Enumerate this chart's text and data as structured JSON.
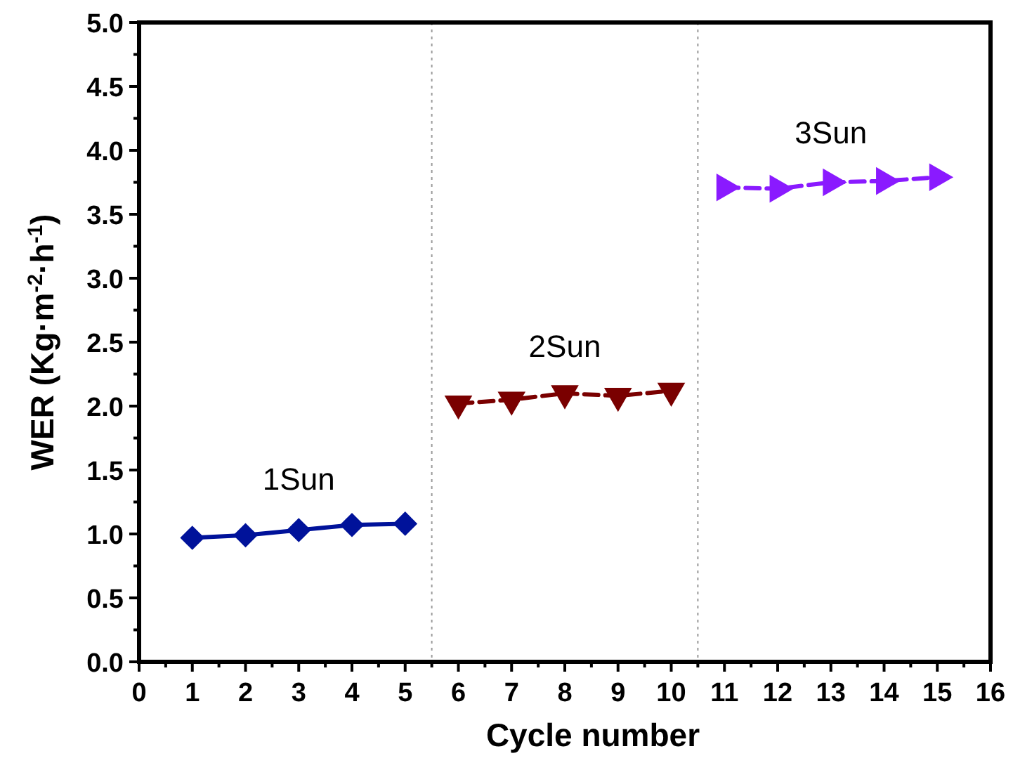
{
  "chart_data": {
    "type": "line",
    "xlabel": "Cycle number",
    "ylabel": "WER (Kg·m$^{-2}$·h$^{-1}$)",
    "xlim": [
      0,
      16
    ],
    "xticks": [
      0,
      1,
      2,
      3,
      4,
      5,
      6,
      7,
      8,
      9,
      10,
      11,
      12,
      13,
      14,
      15,
      16
    ],
    "ylim": [
      0,
      5
    ],
    "yticks": [
      {
        "value": 0,
        "label": "0.0"
      },
      {
        "value": 0.5,
        "label": "0.5"
      },
      {
        "value": 1,
        "label": "1.0"
      },
      {
        "value": 1.5,
        "label": "1.5"
      },
      {
        "value": 2,
        "label": "2.0"
      },
      {
        "value": 2.5,
        "label": "2.5"
      },
      {
        "value": 3,
        "label": "3.0"
      },
      {
        "value": 3.5,
        "label": "3.5"
      },
      {
        "value": 4,
        "label": "4.0"
      },
      {
        "value": 4.5,
        "label": "4.5"
      },
      {
        "value": 5,
        "label": "5.0"
      }
    ],
    "series": [
      {
        "name": "1Sun",
        "color": "#00129a",
        "x": [
          1,
          2,
          3,
          4,
          5
        ],
        "values": [
          0.97,
          0.99,
          1.03,
          1.07,
          1.08
        ],
        "marker": "diamond",
        "line_style": "solid"
      },
      {
        "name": "2Sun",
        "color": "#7a0000",
        "x": [
          6,
          7,
          8,
          9,
          10
        ],
        "values": [
          2.02,
          2.05,
          2.1,
          2.08,
          2.12
        ],
        "marker": "triangle",
        "line_style": "dashed"
      },
      {
        "name": "3Sun",
        "color": "#8a1aff",
        "x": [
          11,
          12,
          13,
          14,
          15
        ],
        "values": [
          3.71,
          3.7,
          3.75,
          3.76,
          3.79
        ],
        "marker": "triangle",
        "line_style": "dashed"
      }
    ],
    "ref_lines": [
      {
        "axis": "x",
        "value": 5.5,
        "color": "#999999",
        "line_style": "dotted"
      },
      {
        "axis": "x",
        "value": 10.5,
        "color": "#999999",
        "line_style": "dotted"
      }
    ]
  }
}
